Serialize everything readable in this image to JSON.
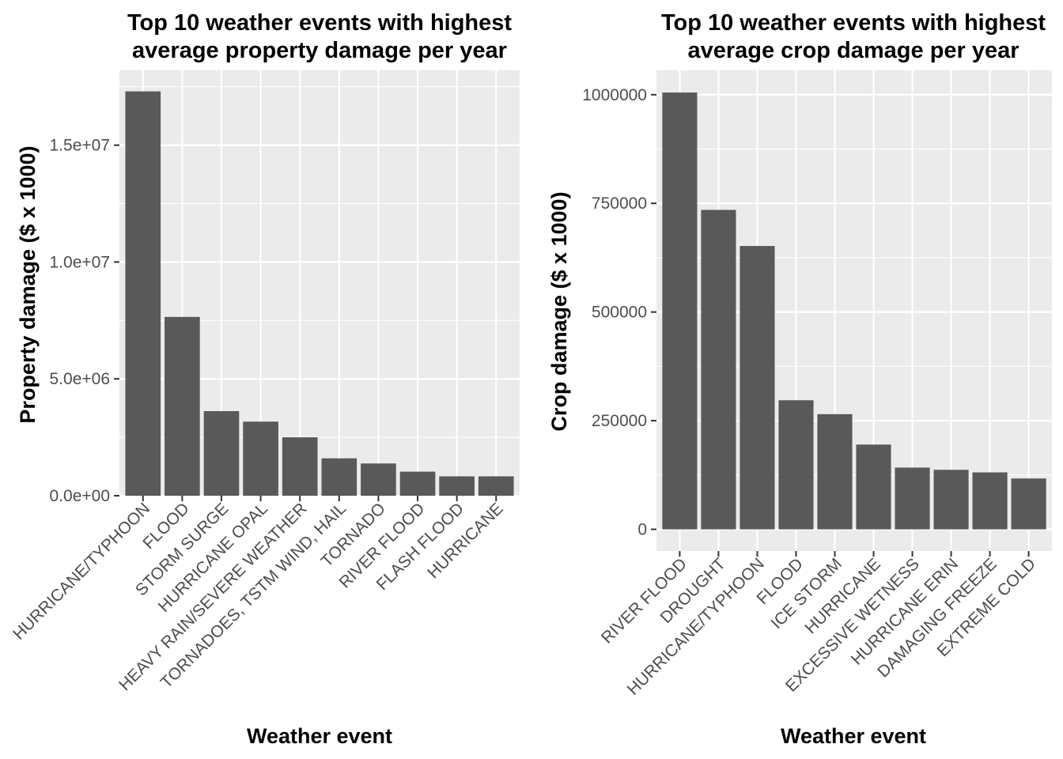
{
  "chart_data": [
    {
      "type": "bar",
      "title_lines": [
        "Top 10 weather events with highest",
        "average property damage per year"
      ],
      "xlabel": "Weather event",
      "ylabel": "Property damage ($ x 1000)",
      "categories": [
        "HURRICANE/TYPHOON",
        "FLOOD",
        "STORM SURGE",
        "HURRICANE OPAL",
        "HEAVY RAIN/SEVERE WEATHER",
        "TORNADOES, TSTM WIND, HAIL",
        "TORNADO",
        "RIVER FLOOD",
        "FLASH FLOOD",
        "HURRICANE"
      ],
      "values": [
        17300000,
        7650000,
        3620000,
        3170000,
        2500000,
        1600000,
        1380000,
        1030000,
        830000,
        830000
      ],
      "ylim": [
        0,
        18200000
      ],
      "yticks": [
        0,
        5000000,
        10000000,
        15000000
      ],
      "ytick_labels": [
        "0.0e+00",
        "5.0e+06",
        "1.0e+07",
        "1.5e+07"
      ],
      "grid": true,
      "bar_color": "#595959",
      "panel_color": "#ebebeb"
    },
    {
      "type": "bar",
      "title_lines": [
        "Top 10 weather events with highest",
        "average crop damage per year"
      ],
      "xlabel": "Weather event",
      "ylabel": "Crop damage ($ x 1000)",
      "categories": [
        "RIVER FLOOD",
        "DROUGHT",
        "HURRICANE/TYPHOON",
        "FLOOD",
        "ICE STORM",
        "HURRICANE",
        "EXCESSIVE WETNESS",
        "HURRICANE ERIN",
        "DAMAGING FREEZE",
        "EXTREME COLD"
      ],
      "values": [
        1005000,
        735000,
        652000,
        297000,
        265000,
        195000,
        142000,
        137000,
        131000,
        117000
      ],
      "ylim": [
        -50000,
        1056000
      ],
      "yticks": [
        0,
        250000,
        500000,
        750000,
        1000000
      ],
      "ytick_labels": [
        "0",
        "250000",
        "500000",
        "750000",
        "1000000"
      ],
      "grid": true,
      "bar_color": "#595959",
      "panel_color": "#ebebeb"
    }
  ]
}
